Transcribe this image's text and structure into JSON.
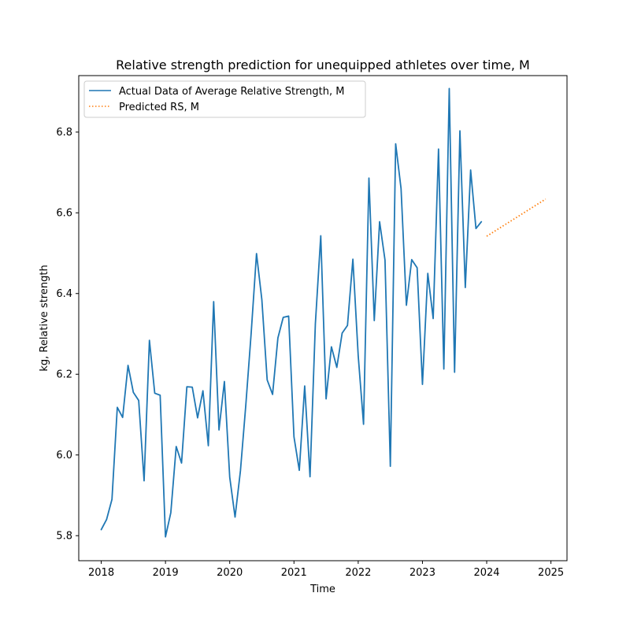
{
  "chart_data": {
    "type": "line",
    "title": "Relative strength prediction for unequipped athletes over time, M",
    "xlabel": "Time",
    "ylabel": "kg, Relative strength",
    "xlim": [
      2017.65,
      2025.25
    ],
    "ylim": [
      5.738,
      6.94
    ],
    "xticks": [
      {
        "value": 2018,
        "label": "2018"
      },
      {
        "value": 2019,
        "label": "2019"
      },
      {
        "value": 2020,
        "label": "2020"
      },
      {
        "value": 2021,
        "label": "2021"
      },
      {
        "value": 2022,
        "label": "2022"
      },
      {
        "value": 2023,
        "label": "2023"
      },
      {
        "value": 2024,
        "label": "2024"
      },
      {
        "value": 2025,
        "label": "2025"
      }
    ],
    "yticks": [
      {
        "value": 5.8,
        "label": "5.8"
      },
      {
        "value": 6.0,
        "label": "6.0"
      },
      {
        "value": 6.2,
        "label": "6.2"
      },
      {
        "value": 6.4,
        "label": "6.4"
      },
      {
        "value": 6.6,
        "label": "6.6"
      },
      {
        "value": 6.8,
        "label": "6.8"
      }
    ],
    "legend_position": "top-left",
    "grid": false,
    "series": [
      {
        "name": "Actual Data of Average Relative Strength, M",
        "color": "#1f77b4",
        "style": "solid",
        "x": [
          2018.0,
          2018.083,
          2018.167,
          2018.25,
          2018.333,
          2018.417,
          2018.5,
          2018.583,
          2018.667,
          2018.75,
          2018.833,
          2018.917,
          2019.0,
          2019.083,
          2019.167,
          2019.25,
          2019.333,
          2019.417,
          2019.5,
          2019.583,
          2019.667,
          2019.75,
          2019.833,
          2019.917,
          2020.0,
          2020.083,
          2020.167,
          2020.25,
          2020.333,
          2020.417,
          2020.5,
          2020.583,
          2020.667,
          2020.75,
          2020.833,
          2020.917,
          2021.0,
          2021.083,
          2021.167,
          2021.25,
          2021.333,
          2021.417,
          2021.5,
          2021.583,
          2021.667,
          2021.75,
          2021.833,
          2021.917,
          2022.0,
          2022.083,
          2022.167,
          2022.25,
          2022.333,
          2022.417,
          2022.5,
          2022.583,
          2022.667,
          2022.75,
          2022.833,
          2022.917,
          2023.0,
          2023.083,
          2023.167,
          2023.25,
          2023.333,
          2023.417,
          2023.5,
          2023.583,
          2023.667,
          2023.75,
          2023.833,
          2023.917
        ],
        "y": [
          5.815,
          5.84,
          5.89,
          6.118,
          6.093,
          6.222,
          6.155,
          6.135,
          5.936,
          6.284,
          6.153,
          6.148,
          5.797,
          5.857,
          6.021,
          5.98,
          6.169,
          6.168,
          6.092,
          6.159,
          6.023,
          6.38,
          6.062,
          6.182,
          5.945,
          5.846,
          5.961,
          6.123,
          6.3,
          6.499,
          6.385,
          6.186,
          6.15,
          6.29,
          6.341,
          6.344,
          6.045,
          5.962,
          6.171,
          5.946,
          6.325,
          6.543,
          6.139,
          6.268,
          6.217,
          6.302,
          6.321,
          6.485,
          6.246,
          6.076,
          6.686,
          6.333,
          6.578,
          6.483,
          5.972,
          6.771,
          6.66,
          6.371,
          6.484,
          6.464,
          6.175,
          6.45,
          6.338,
          6.758,
          6.213,
          6.908,
          6.205,
          6.803,
          6.415,
          6.706,
          6.561,
          6.578
        ]
      },
      {
        "name": "Predicted RS, M",
        "color": "#ff7f0e",
        "style": "dotted",
        "x": [
          2024.0,
          2024.917
        ],
        "y": [
          6.542,
          6.634
        ]
      }
    ]
  }
}
